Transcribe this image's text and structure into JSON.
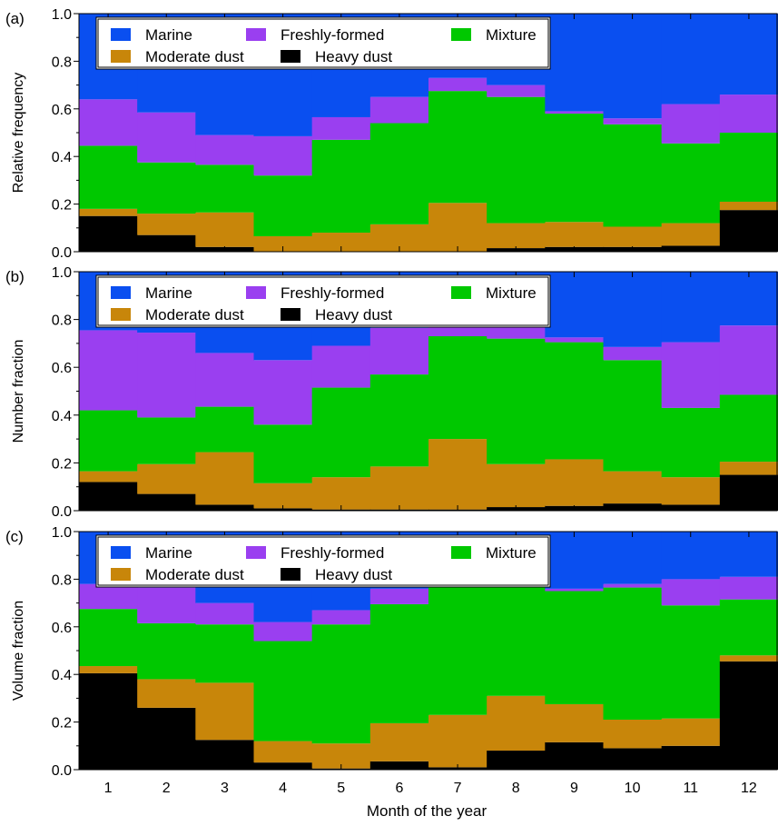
{
  "figure": {
    "xlabel": "Month of the year",
    "x_ticks": [
      "1",
      "2",
      "3",
      "4",
      "5",
      "6",
      "7",
      "8",
      "9",
      "10",
      "11",
      "12"
    ],
    "y_ticks": [
      "0.0",
      "0.2",
      "0.4",
      "0.6",
      "0.8",
      "1.0"
    ]
  },
  "legend_labels": [
    "Marine",
    "Freshly-formed",
    "Mixture",
    "Moderate dust",
    "Heavy dust"
  ],
  "colors": {
    "Marine": "#0a4ff0",
    "Freshly-formed": "#9a3ff0",
    "Mixture": "#00c800",
    "Moderate dust": "#c8860a",
    "Heavy dust": "#000000"
  },
  "chart_data": [
    {
      "type": "area",
      "panel_label": "(a)",
      "ylabel": "Relative frequency",
      "ylim": [
        0,
        1
      ],
      "x": [
        1,
        2,
        3,
        4,
        5,
        6,
        7,
        8,
        9,
        10,
        11,
        12
      ],
      "legend": "top-left",
      "series": [
        {
          "name": "Heavy dust",
          "values": [
            0.15,
            0.07,
            0.02,
            0.0,
            0.0,
            0.0,
            0.0,
            0.015,
            0.02,
            0.02,
            0.025,
            0.175
          ]
        },
        {
          "name": "Moderate dust",
          "values": [
            0.03,
            0.09,
            0.145,
            0.065,
            0.08,
            0.115,
            0.205,
            0.105,
            0.105,
            0.085,
            0.095,
            0.035
          ]
        },
        {
          "name": "Mixture",
          "values": [
            0.265,
            0.215,
            0.2,
            0.255,
            0.39,
            0.425,
            0.47,
            0.53,
            0.455,
            0.43,
            0.335,
            0.29
          ]
        },
        {
          "name": "Freshly-formed",
          "values": [
            0.195,
            0.21,
            0.125,
            0.165,
            0.095,
            0.11,
            0.055,
            0.05,
            0.01,
            0.025,
            0.165,
            0.16
          ]
        },
        {
          "name": "Marine",
          "values": [
            0.36,
            0.415,
            0.51,
            0.515,
            0.435,
            0.35,
            0.27,
            0.3,
            0.41,
            0.44,
            0.38,
            0.34
          ]
        }
      ]
    },
    {
      "type": "area",
      "panel_label": "(b)",
      "ylabel": "Number fraction",
      "ylim": [
        0,
        1
      ],
      "x": [
        1,
        2,
        3,
        4,
        5,
        6,
        7,
        8,
        9,
        10,
        11,
        12
      ],
      "legend": "top-left",
      "series": [
        {
          "name": "Heavy dust",
          "values": [
            0.12,
            0.07,
            0.025,
            0.01,
            0.005,
            0.005,
            0.005,
            0.015,
            0.02,
            0.03,
            0.025,
            0.15
          ]
        },
        {
          "name": "Moderate dust",
          "values": [
            0.045,
            0.125,
            0.22,
            0.105,
            0.135,
            0.18,
            0.295,
            0.18,
            0.195,
            0.135,
            0.115,
            0.055
          ]
        },
        {
          "name": "Mixture",
          "values": [
            0.255,
            0.195,
            0.19,
            0.245,
            0.375,
            0.385,
            0.43,
            0.525,
            0.49,
            0.465,
            0.29,
            0.28
          ]
        },
        {
          "name": "Freshly-formed",
          "values": [
            0.335,
            0.355,
            0.225,
            0.27,
            0.175,
            0.195,
            0.04,
            0.05,
            0.02,
            0.055,
            0.275,
            0.29
          ]
        },
        {
          "name": "Marine",
          "values": [
            0.245,
            0.255,
            0.34,
            0.37,
            0.31,
            0.235,
            0.23,
            0.23,
            0.275,
            0.315,
            0.295,
            0.225
          ]
        }
      ]
    },
    {
      "type": "area",
      "panel_label": "(c)",
      "ylabel": "Volume fraction",
      "ylim": [
        0,
        1
      ],
      "x": [
        1,
        2,
        3,
        4,
        5,
        6,
        7,
        8,
        9,
        10,
        11,
        12
      ],
      "legend": "top-left",
      "series": [
        {
          "name": "Heavy dust",
          "values": [
            0.405,
            0.26,
            0.125,
            0.03,
            0.005,
            0.035,
            0.01,
            0.08,
            0.115,
            0.09,
            0.1,
            0.455
          ]
        },
        {
          "name": "Moderate dust",
          "values": [
            0.03,
            0.12,
            0.24,
            0.09,
            0.105,
            0.16,
            0.22,
            0.23,
            0.16,
            0.12,
            0.115,
            0.025
          ]
        },
        {
          "name": "Mixture",
          "values": [
            0.24,
            0.235,
            0.245,
            0.42,
            0.5,
            0.5,
            0.56,
            0.46,
            0.475,
            0.555,
            0.475,
            0.235
          ]
        },
        {
          "name": "Freshly-formed",
          "values": [
            0.105,
            0.15,
            0.09,
            0.08,
            0.06,
            0.065,
            0.02,
            0.02,
            0.01,
            0.015,
            0.11,
            0.095
          ]
        },
        {
          "name": "Marine",
          "values": [
            0.22,
            0.235,
            0.3,
            0.38,
            0.33,
            0.24,
            0.19,
            0.21,
            0.24,
            0.22,
            0.2,
            0.19
          ]
        }
      ]
    }
  ]
}
